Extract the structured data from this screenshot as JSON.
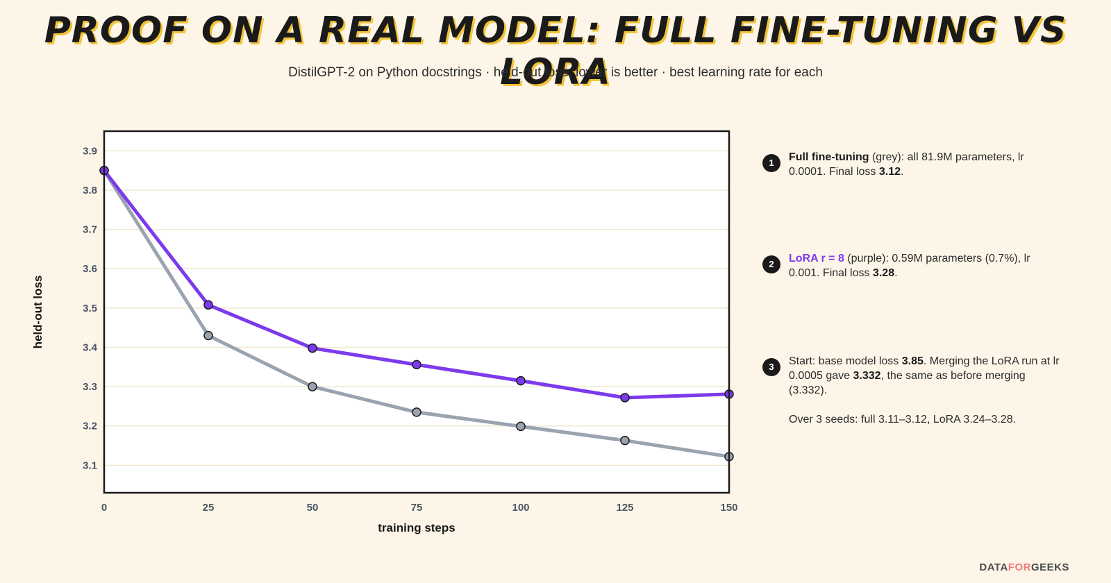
{
  "title": "PROOF ON A REAL MODEL: FULL FINE-TUNING VS LORA",
  "subtitle": "DistilGPT-2 on Python docstrings · held-out loss, lower is better · best learning rate for each",
  "chart_data": {
    "type": "line",
    "xlabel": "training steps",
    "ylabel": "held-out loss",
    "x": [
      0,
      25,
      50,
      75,
      100,
      125,
      150
    ],
    "xticks": [
      "0",
      "25",
      "50",
      "75",
      "100",
      "125",
      "150"
    ],
    "yticks": [
      "3.1",
      "3.2",
      "3.3",
      "3.4",
      "3.5",
      "3.6",
      "3.7",
      "3.8",
      "3.9"
    ],
    "xlim": [
      0,
      150
    ],
    "ylim": [
      3.03,
      3.95
    ],
    "grid": true,
    "series": [
      {
        "color": "#9aa3b0",
        "values": [
          3.85,
          3.43,
          3.3,
          3.235,
          3.199,
          3.163,
          3.122
        ]
      },
      {
        "color": "#7c3aed",
        "values": [
          3.85,
          3.508,
          3.398,
          3.356,
          3.315,
          3.272,
          3.281
        ]
      }
    ]
  },
  "notes": [
    {
      "num": "1",
      "label": "Full fine-tuning",
      "text1": " (grey): all 81.9M parameters, lr 0.0001. Final loss ",
      "value": "3.12",
      "text2": "."
    },
    {
      "num": "2",
      "label": "LoRA r = 8",
      "text1": " (purple): 0.59M parameters (0.7%), lr 0.001. Final loss ",
      "value": "3.28",
      "text2": "."
    },
    {
      "num": "3",
      "text1": "Start: base model loss ",
      "value": "3.85",
      "text2": ". Merging the LoRA run at lr 0.0005 gave ",
      "value2": "3.332",
      "text3": ", the same as before merging (3.332).",
      "text4": "Over 3 seeds: full 3.11–3.12, LoRA 3.24–3.28."
    }
  ],
  "brand": {
    "part1": "DATA",
    "part2": "FOR",
    "part3": "GEEKS"
  },
  "colors": {
    "background": "#fdf6e8",
    "full": "#9aa3b0",
    "lora": "#7c3aed",
    "title_shadow": "#f2c43a"
  }
}
